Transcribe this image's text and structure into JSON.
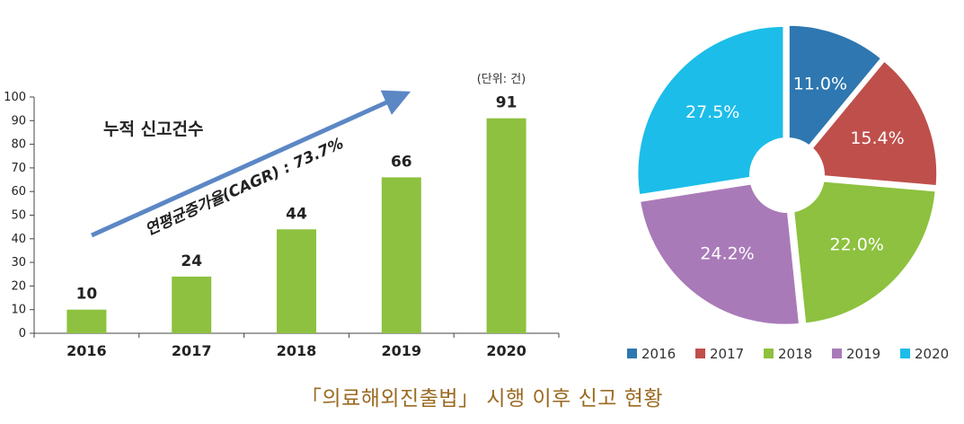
{
  "caption": "「의료해외진출법」 시행 이후 신고 현황",
  "chart_data": [
    {
      "type": "bar",
      "title": "누적 신고건수",
      "unit_note": "(단위: 건)",
      "annotation": "연평균증가율(CAGR) : 73.7%",
      "categories": [
        "2016",
        "2017",
        "2018",
        "2019",
        "2020"
      ],
      "values": [
        10,
        24,
        44,
        66,
        91
      ],
      "data_labels": [
        "10",
        "24",
        "44",
        "66",
        "91"
      ],
      "ylim": [
        0,
        100
      ],
      "yticks": [
        0,
        10,
        20,
        30,
        40,
        50,
        60,
        70,
        80,
        90,
        100
      ],
      "bar_color": "#8dc13f",
      "arrow_color": "#5b87c5",
      "grid": false
    },
    {
      "type": "pie",
      "categories": [
        "2016",
        "2017",
        "2018",
        "2019",
        "2020"
      ],
      "values": [
        11.0,
        15.4,
        22.0,
        24.2,
        27.5
      ],
      "labels": [
        "11.0%",
        "15.4%",
        "22.0%",
        "24.2%",
        "27.5%"
      ],
      "colors": [
        "#2e77b0",
        "#bf4f4b",
        "#8dc13f",
        "#a97ab8",
        "#1cbde9"
      ],
      "donut_hole": true,
      "legend_position": "bottom"
    }
  ]
}
